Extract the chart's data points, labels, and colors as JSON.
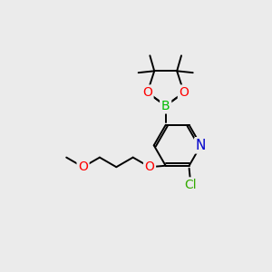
{
  "bg_color": "#ebebeb",
  "bond_color": "#000000",
  "atom_colors": {
    "O": "#ff0000",
    "N": "#0000cc",
    "B": "#00bb00",
    "Cl": "#33aa00",
    "C": "#000000"
  }
}
